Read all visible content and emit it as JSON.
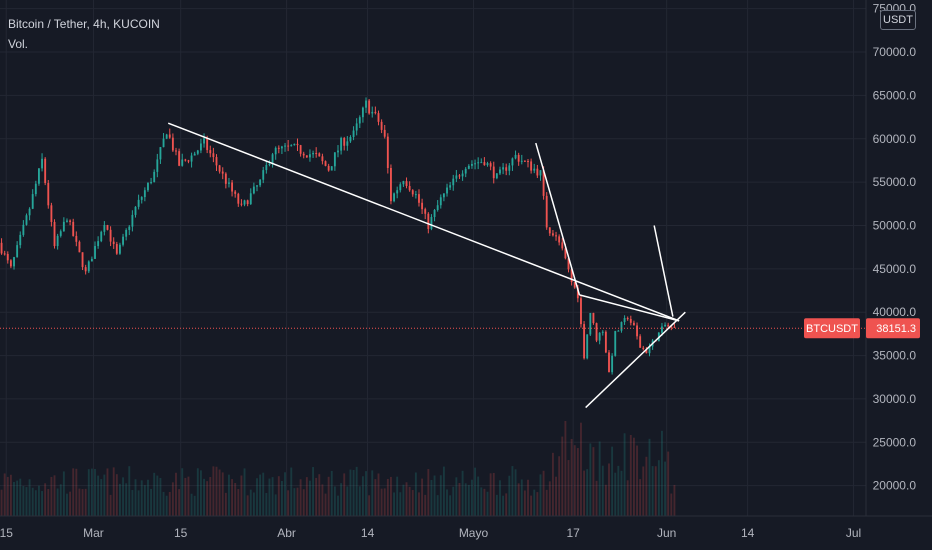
{
  "legend": {
    "title": "Bitcoin / Tether, 4h, KUCOIN",
    "volume_label": "Vol."
  },
  "currency_badge": "USDT",
  "colors": {
    "background": "#161a25",
    "up": "#26a69a",
    "down": "#ef5350",
    "grid": "#232733",
    "axis_text": "#b2b5be",
    "trendline": "#ffffff",
    "price_label_bg": "#ef5350"
  },
  "chart_data": {
    "type": "candlestick",
    "symbol": "BTCUSDT",
    "interval": "4h",
    "exchange": "KUCOIN",
    "last_price": 38151.3,
    "last_price_label": "38151.3",
    "symbol_label": "BTCUSDT",
    "ylim": [
      16500,
      76000
    ],
    "y_ticks": [
      20000,
      25000,
      30000,
      35000,
      40000,
      45000,
      50000,
      55000,
      60000,
      65000,
      70000,
      75000
    ],
    "y_tick_labels": [
      "20000.0",
      "25000.0",
      "30000.0",
      "35000.0",
      "40000.0",
      "45000.0",
      "50000.0",
      "55000.0",
      "60000.0",
      "65000.0",
      "70000.0",
      "75000.0"
    ],
    "x_range": [
      "2021-02-14",
      "2021-07-03"
    ],
    "x_ticks": [
      {
        "date": "2021-02-15",
        "label": "15"
      },
      {
        "date": "2021-03-01",
        "label": "Mar"
      },
      {
        "date": "2021-03-15",
        "label": "15"
      },
      {
        "date": "2021-04-01",
        "label": "Abr"
      },
      {
        "date": "2021-04-14",
        "label": "14"
      },
      {
        "date": "2021-05-01",
        "label": "Mayo"
      },
      {
        "date": "2021-05-17",
        "label": "17"
      },
      {
        "date": "2021-06-01",
        "label": "Jun"
      },
      {
        "date": "2021-06-14",
        "label": "14"
      },
      {
        "date": "2021-07-01",
        "label": "Jul"
      }
    ],
    "price_path": [
      [
        "2021-02-14",
        48000
      ],
      [
        "2021-02-16",
        45000
      ],
      [
        "2021-02-19",
        52000
      ],
      [
        "2021-02-21",
        57500
      ],
      [
        "2021-02-23",
        47500
      ],
      [
        "2021-02-25",
        51000
      ],
      [
        "2021-02-28",
        44500
      ],
      [
        "2021-03-03",
        50500
      ],
      [
        "2021-03-05",
        46500
      ],
      [
        "2021-03-08",
        52000
      ],
      [
        "2021-03-11",
        56000
      ],
      [
        "2021-03-13",
        61000
      ],
      [
        "2021-03-15",
        57000
      ],
      [
        "2021-03-17",
        58000
      ],
      [
        "2021-03-19",
        59500
      ],
      [
        "2021-03-21",
        57000
      ],
      [
        "2021-03-23",
        54500
      ],
      [
        "2021-03-25",
        52000
      ],
      [
        "2021-03-28",
        55000
      ],
      [
        "2021-03-30",
        58500
      ],
      [
        "2021-04-02",
        59000
      ],
      [
        "2021-04-06",
        58000
      ],
      [
        "2021-04-08",
        56500
      ],
      [
        "2021-04-10",
        59500
      ],
      [
        "2021-04-12",
        60500
      ],
      [
        "2021-04-14",
        64000
      ],
      [
        "2021-04-16",
        62000
      ],
      [
        "2021-04-17",
        60000
      ],
      [
        "2021-04-18",
        53000
      ],
      [
        "2021-04-20",
        55500
      ],
      [
        "2021-04-22",
        53500
      ],
      [
        "2021-04-24",
        50000
      ],
      [
        "2021-04-26",
        53000
      ],
      [
        "2021-04-28",
        55000
      ],
      [
        "2021-04-30",
        57000
      ],
      [
        "2021-05-03",
        57500
      ],
      [
        "2021-05-05",
        55500
      ],
      [
        "2021-05-08",
        58000
      ],
      [
        "2021-05-10",
        57000
      ],
      [
        "2021-05-12",
        56000
      ],
      [
        "2021-05-13",
        50000
      ],
      [
        "2021-05-15",
        48000
      ],
      [
        "2021-05-16",
        46000
      ],
      [
        "2021-05-17",
        43500
      ],
      [
        "2021-05-18",
        42000
      ],
      [
        "2021-05-19",
        35000
      ],
      [
        "2021-05-20",
        40000
      ],
      [
        "2021-05-21",
        37000
      ],
      [
        "2021-05-22",
        38000
      ],
      [
        "2021-05-23",
        33000
      ],
      [
        "2021-05-24",
        37500
      ],
      [
        "2021-05-25",
        38500
      ],
      [
        "2021-05-26",
        39500
      ],
      [
        "2021-05-27",
        38200
      ],
      [
        "2021-05-28",
        36000
      ],
      [
        "2021-05-29",
        35500
      ],
      [
        "2021-05-30",
        36500
      ],
      [
        "2021-05-31",
        37500
      ],
      [
        "2021-06-01",
        38500
      ],
      [
        "2021-06-02",
        38151.3
      ]
    ],
    "trendlines": [
      {
        "name": "descending-resistance",
        "from": [
          "2021-03-13",
          61800
        ],
        "to": [
          "2021-06-03",
          39000
        ]
      },
      {
        "name": "steep-drop-line",
        "from": [
          "2021-05-11",
          59500
        ],
        "to": [
          "2021-05-18",
          42000
        ]
      },
      {
        "name": "triangle-upper",
        "from": [
          "2021-05-18",
          42000
        ],
        "to": [
          "2021-06-03",
          39000
        ]
      },
      {
        "name": "triangle-lower",
        "from": [
          "2021-05-19",
          29000
        ],
        "to": [
          "2021-06-04",
          40000
        ]
      },
      {
        "name": "triangle-apex-ray",
        "from": [
          "2021-05-30",
          50000
        ],
        "to": [
          "2021-06-02",
          39500
        ]
      }
    ]
  }
}
